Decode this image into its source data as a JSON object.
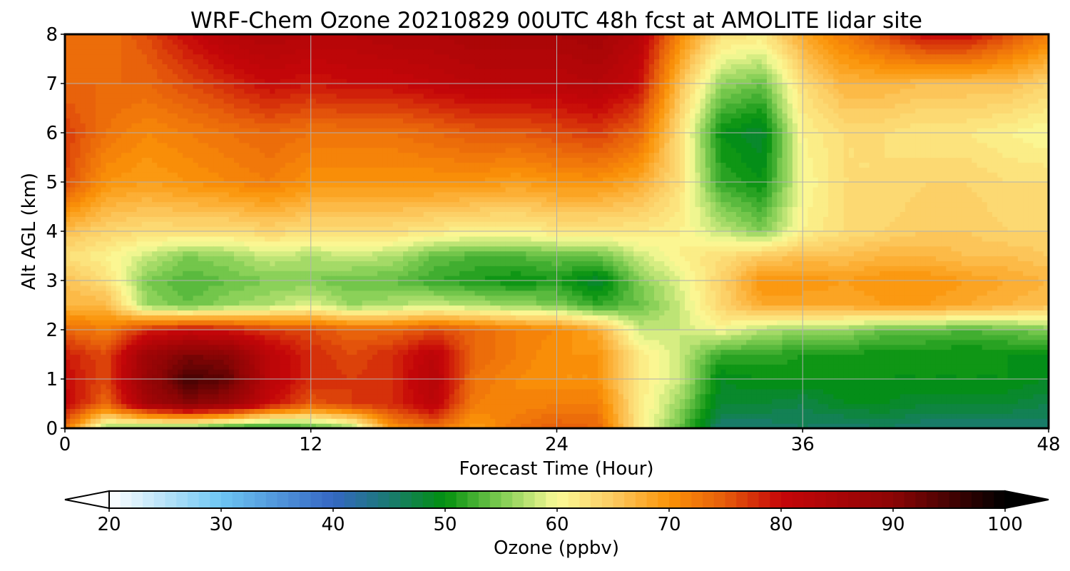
{
  "chart_data": {
    "type": "heatmap",
    "title": "WRF-Chem Ozone  20210829 00UTC 48h fcst at AMOLITE lidar site",
    "xlabel": "Forecast Time (Hour)",
    "ylabel": "Alt AGL (km)",
    "xlim": [
      0,
      48
    ],
    "ylim": [
      0,
      8
    ],
    "x_ticks": [
      0,
      12,
      24,
      36,
      48
    ],
    "y_ticks": [
      0,
      1,
      2,
      3,
      4,
      5,
      6,
      7,
      8
    ],
    "grid": true,
    "colorbar": {
      "label": "Ozone  (ppbv)",
      "vmin": 20,
      "vmax": 100,
      "ticks": [
        20,
        30,
        40,
        50,
        60,
        70,
        80,
        90,
        100
      ],
      "extend": "both",
      "levels": 80,
      "color_stops": [
        {
          "value": 20,
          "color": "#ffffff"
        },
        {
          "value": 30,
          "color": "#6ec6f3"
        },
        {
          "value": 40,
          "color": "#3567c4"
        },
        {
          "value": 45,
          "color": "#1a7a72"
        },
        {
          "value": 50,
          "color": "#02900e"
        },
        {
          "value": 55,
          "color": "#7fcc52"
        },
        {
          "value": 60,
          "color": "#fbfb97"
        },
        {
          "value": 65,
          "color": "#fccb62"
        },
        {
          "value": 70,
          "color": "#fb9308"
        },
        {
          "value": 75,
          "color": "#e65c0b"
        },
        {
          "value": 80,
          "color": "#c60609"
        },
        {
          "value": 90,
          "color": "#8c0505"
        },
        {
          "value": 100,
          "color": "#000000"
        }
      ]
    },
    "field_x": [
      0,
      2,
      4,
      6,
      8,
      10,
      12,
      14,
      16,
      18,
      20,
      22,
      24,
      26,
      28,
      30,
      32,
      34,
      36,
      38,
      40,
      42,
      44,
      46,
      48
    ],
    "field_y": [
      0,
      0.5,
      1,
      1.5,
      2,
      2.5,
      3,
      3.5,
      4,
      5,
      6,
      7,
      8
    ],
    "field_z": [
      [
        73,
        56,
        54,
        54,
        51,
        50,
        52,
        56,
        70,
        73,
        69,
        73,
        75,
        74,
        62,
        54,
        45,
        45,
        46,
        45,
        46,
        45,
        45,
        45,
        45
      ],
      [
        81,
        74,
        86,
        90,
        88,
        80,
        75,
        77,
        78,
        82,
        72,
        71,
        72,
        72,
        62,
        56,
        48,
        48,
        47,
        49,
        49,
        48,
        48,
        48,
        47
      ],
      [
        80,
        76,
        88,
        95,
        93,
        82,
        78,
        77,
        78,
        83,
        73,
        71,
        70,
        70,
        62,
        58,
        49,
        50,
        50,
        50,
        50,
        50,
        50,
        50,
        49
      ],
      [
        79,
        76,
        87,
        91,
        90,
        82,
        78,
        76,
        78,
        82,
        74,
        72,
        70,
        70,
        62,
        58,
        52,
        52,
        51,
        51,
        50,
        50,
        50,
        50,
        50
      ],
      [
        74,
        72,
        78,
        80,
        79,
        77,
        76,
        74,
        74,
        76,
        74,
        72,
        71,
        68,
        58,
        58,
        60,
        57,
        56,
        56,
        54,
        54,
        53,
        54,
        55
      ],
      [
        67,
        67,
        56,
        54,
        56,
        57,
        59,
        56,
        57,
        58,
        57,
        56,
        55,
        52,
        54,
        58,
        64,
        68,
        68,
        68,
        69,
        69,
        68,
        67,
        66
      ],
      [
        66,
        63,
        55,
        53,
        54,
        55,
        55,
        54,
        54,
        52,
        51,
        50,
        51,
        48,
        55,
        59,
        64,
        70,
        70,
        69,
        70,
        70,
        69,
        68,
        67
      ],
      [
        63,
        61,
        58,
        55,
        56,
        58,
        57,
        58,
        57,
        54,
        53,
        53,
        54,
        54,
        58,
        61,
        63,
        65,
        66,
        66,
        67,
        67,
        66,
        66,
        65
      ],
      [
        66,
        64,
        63,
        63,
        63,
        64,
        63,
        63,
        63,
        62,
        61,
        61,
        62,
        62,
        62,
        61,
        58,
        55,
        61,
        63,
        64,
        65,
        65,
        64,
        64
      ],
      [
        76,
        70,
        69,
        70,
        71,
        72,
        70,
        70,
        70,
        70,
        70,
        69,
        70,
        70,
        68,
        63,
        52,
        50,
        60,
        63,
        63,
        64,
        64,
        63,
        63
      ],
      [
        77,
        73,
        71,
        72,
        73,
        74,
        73,
        73,
        73,
        74,
        75,
        75,
        76,
        77,
        74,
        63,
        50,
        48,
        61,
        63,
        63,
        62,
        62,
        61,
        60
      ],
      [
        74,
        74,
        74,
        76,
        78,
        80,
        79,
        80,
        80,
        81,
        82,
        82,
        82,
        83,
        80,
        66,
        56,
        54,
        63,
        67,
        67,
        66,
        66,
        66,
        64
      ],
      [
        73,
        73,
        76,
        80,
        83,
        84,
        83,
        83,
        84,
        84,
        85,
        85,
        85,
        86,
        83,
        71,
        63,
        62,
        68,
        72,
        76,
        80,
        80,
        76,
        72
      ]
    ]
  }
}
